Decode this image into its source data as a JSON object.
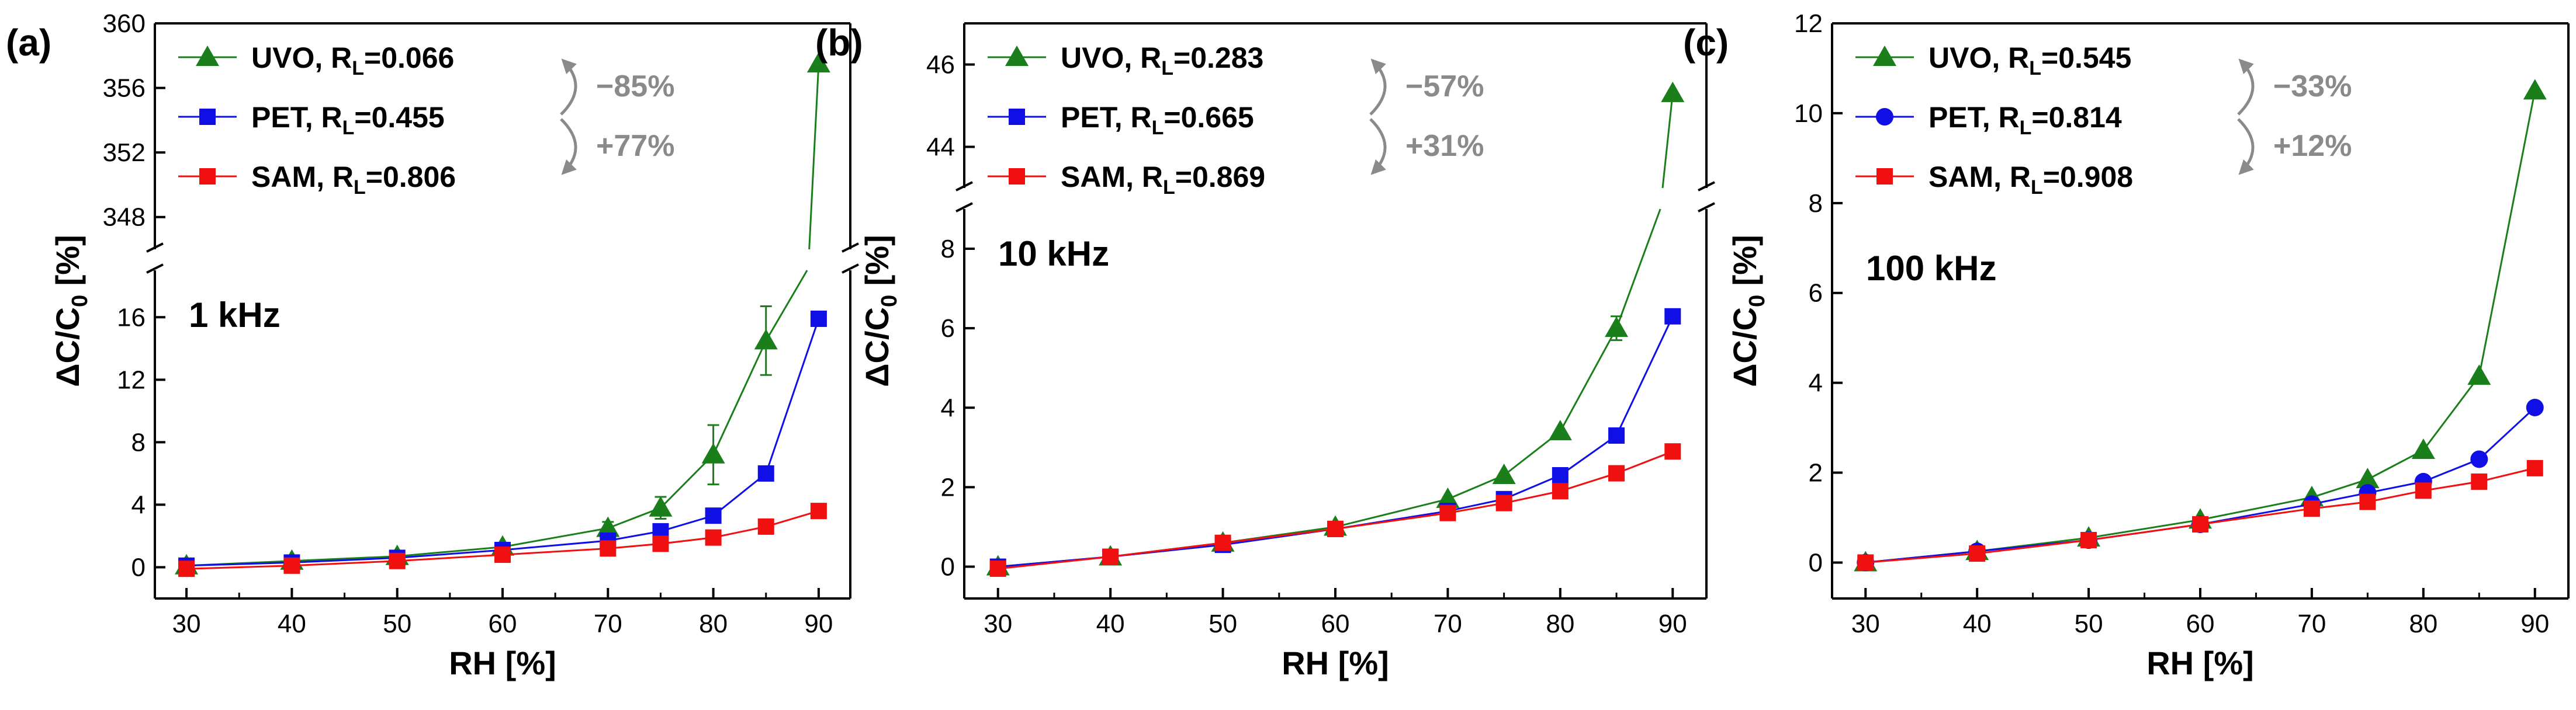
{
  "colors": {
    "UVO": "#1a7f1a",
    "PET": "#0f0fe6",
    "SAM": "#f01010",
    "annotation": "#8a8a8a"
  },
  "chart_data": [
    {
      "type": "line",
      "panel_label": "(a)",
      "frequency": "1 kHz",
      "xlabel": "RH [%]",
      "ylabel": "ΔC/C0 [%]",
      "x": [
        30,
        40,
        50,
        60,
        70,
        75,
        80,
        85,
        90
      ],
      "xlim": [
        27,
        93
      ],
      "xticks": [
        "30",
        "40",
        "50",
        "60",
        "70",
        "80",
        "90"
      ],
      "broken_y_axis": true,
      "ylim_lower": [
        -2,
        19
      ],
      "yticks_lower": [
        "0",
        "4",
        "8",
        "12",
        "16"
      ],
      "ylim_upper": [
        346,
        360
      ],
      "yticks_upper": [
        "348",
        "352",
        "356",
        "360"
      ],
      "series": [
        {
          "name": "UVO",
          "rl_label": "UVO, R",
          "rl_sub": "L",
          "rl_value": "=0.066",
          "marker": "triangle",
          "values": [
            0.1,
            0.4,
            0.7,
            1.3,
            2.5,
            3.8,
            7.2,
            14.5,
            357.5
          ],
          "error": [
            0,
            0,
            0,
            0,
            0.4,
            0.7,
            1.9,
            2.2,
            0
          ]
        },
        {
          "name": "PET",
          "rl_label": "PET,  R",
          "rl_sub": "L",
          "rl_value": "=0.455",
          "marker": "square",
          "values": [
            0.1,
            0.3,
            0.6,
            1.1,
            1.7,
            2.3,
            3.3,
            6.0,
            15.9
          ]
        },
        {
          "name": "SAM",
          "rl_label": "SAM, R",
          "rl_sub": "L",
          "rl_value": "=0.806",
          "marker": "square",
          "values": [
            -0.1,
            0.1,
            0.4,
            0.8,
            1.2,
            1.5,
            1.9,
            2.6,
            3.6
          ]
        }
      ],
      "annotations": [
        "−85%",
        "+77%"
      ]
    },
    {
      "type": "line",
      "panel_label": "(b)",
      "frequency": "10 kHz",
      "xlabel": "RH [%]",
      "ylabel": "ΔC/C0 [%]",
      "x": [
        30,
        40,
        50,
        60,
        70,
        75,
        80,
        85,
        90
      ],
      "xlim": [
        27,
        93
      ],
      "xticks": [
        "30",
        "40",
        "50",
        "60",
        "70",
        "80",
        "90"
      ],
      "broken_y_axis": true,
      "ylim_lower": [
        -0.8,
        9.0
      ],
      "yticks_lower": [
        "0",
        "2",
        "4",
        "6",
        "8"
      ],
      "ylim_upper": [
        43.0,
        47.0
      ],
      "yticks_upper": [
        "44",
        "46"
      ],
      "series": [
        {
          "name": "UVO",
          "rl_label": "UVO, R",
          "rl_sub": "L",
          "rl_value": "=0.283",
          "marker": "triangle",
          "values": [
            0.0,
            0.25,
            0.6,
            1.0,
            1.7,
            2.3,
            3.4,
            6.0,
            45.3
          ],
          "error": [
            0,
            0,
            0,
            0,
            0,
            0,
            0,
            0.3,
            0
          ]
        },
        {
          "name": "PET",
          "rl_label": "PET,  R",
          "rl_sub": "L",
          "rl_value": "=0.665",
          "marker": "square",
          "values": [
            0.0,
            0.25,
            0.55,
            0.95,
            1.4,
            1.7,
            2.3,
            3.3,
            6.3
          ]
        },
        {
          "name": "SAM",
          "rl_label": "SAM, R",
          "rl_sub": "L",
          "rl_value": "=0.869",
          "marker": "square",
          "values": [
            -0.05,
            0.25,
            0.6,
            0.95,
            1.35,
            1.6,
            1.9,
            2.35,
            2.9
          ]
        }
      ],
      "annotations": [
        "−57%",
        "+31%"
      ]
    },
    {
      "type": "line",
      "panel_label": "(c)",
      "frequency": "100 kHz",
      "xlabel": "RH [%]",
      "ylabel": "ΔC/C0 [%]",
      "x": [
        30,
        40,
        50,
        60,
        70,
        75,
        80,
        85,
        90
      ],
      "xlim": [
        27,
        93
      ],
      "xticks": [
        "30",
        "40",
        "50",
        "60",
        "70",
        "80",
        "90"
      ],
      "broken_y_axis": false,
      "ylim": [
        -0.8,
        12
      ],
      "yticks": [
        "0",
        "2",
        "4",
        "6",
        "8",
        "10",
        "12"
      ],
      "series": [
        {
          "name": "UVO",
          "rl_label": "UVO, R",
          "rl_sub": "L",
          "rl_value": "=0.545",
          "marker": "triangle",
          "values": [
            0.0,
            0.25,
            0.55,
            0.95,
            1.45,
            1.85,
            2.5,
            4.15,
            10.5
          ]
        },
        {
          "name": "PET",
          "rl_label": "PET,  R",
          "rl_sub": "L",
          "rl_value": "=0.814",
          "marker": "circle",
          "values": [
            0.0,
            0.25,
            0.5,
            0.85,
            1.3,
            1.55,
            1.8,
            2.3,
            3.45
          ]
        },
        {
          "name": "SAM",
          "rl_label": "SAM, R",
          "rl_sub": "L",
          "rl_value": "=0.908",
          "marker": "square",
          "values": [
            0.0,
            0.2,
            0.5,
            0.85,
            1.2,
            1.35,
            1.6,
            1.8,
            2.1
          ]
        }
      ],
      "annotations": [
        "−33%",
        "+12%"
      ]
    }
  ]
}
